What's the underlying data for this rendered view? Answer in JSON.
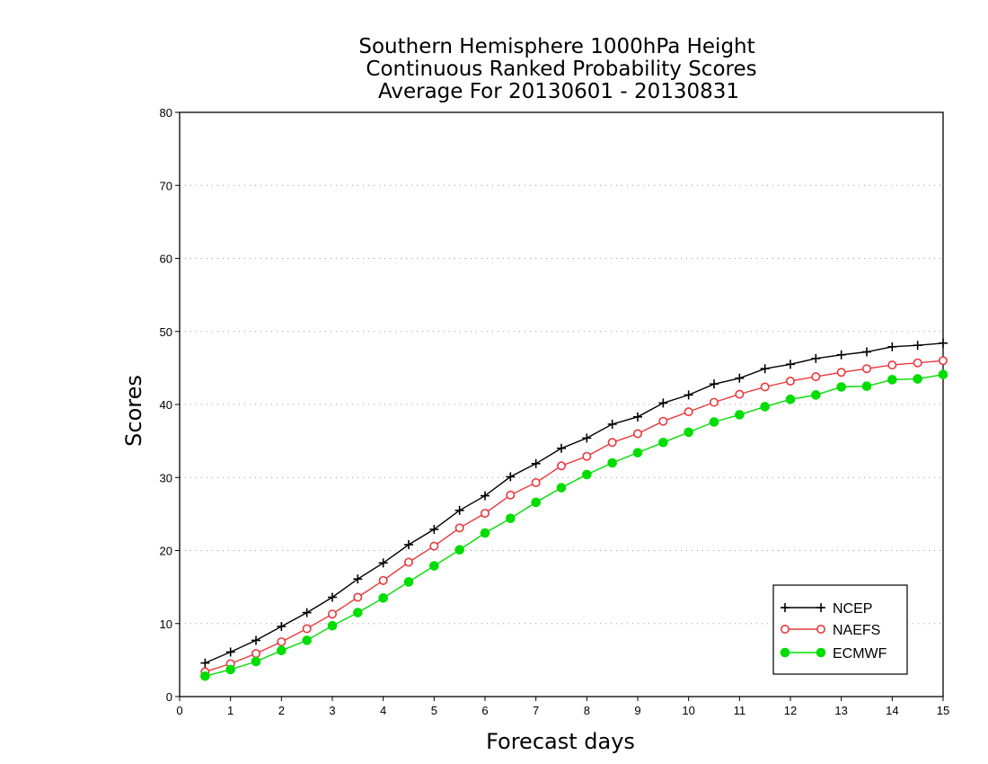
{
  "chart_data": {
    "type": "line",
    "title": [
      "Southern Hemisphere 1000hPa Height",
      "Continuous Ranked Probability Scores",
      "Average For 20130601 - 20130831"
    ],
    "xlabel": "Forecast days",
    "ylabel": "Scores",
    "xlim": [
      0,
      15
    ],
    "ylim": [
      0,
      80
    ],
    "xticks": [
      0,
      1,
      2,
      3,
      4,
      5,
      6,
      7,
      8,
      9,
      10,
      11,
      12,
      13,
      14,
      15
    ],
    "yticks": [
      0,
      10,
      20,
      30,
      40,
      50,
      60,
      70,
      80
    ],
    "grid": "horizontal-dotted",
    "legend_position": "bottom-right",
    "x": [
      0.5,
      1,
      1.5,
      2,
      2.5,
      3,
      3.5,
      4,
      4.5,
      5,
      5.5,
      6,
      6.5,
      7,
      7.5,
      8,
      8.5,
      9,
      9.5,
      10,
      10.5,
      11,
      11.5,
      12,
      12.5,
      13,
      13.5,
      14,
      14.5,
      15
    ],
    "series": [
      {
        "name": "NCEP",
        "color": "#000000",
        "marker": "plus",
        "values": [
          4.6,
          6.1,
          7.7,
          9.6,
          11.5,
          13.6,
          16.1,
          18.3,
          20.8,
          22.9,
          25.5,
          27.5,
          30.1,
          31.9,
          34.0,
          35.4,
          37.3,
          38.3,
          40.2,
          41.3,
          42.8,
          43.6,
          44.9,
          45.5,
          46.3,
          46.8,
          47.2,
          47.9,
          48.1,
          48.4
        ]
      },
      {
        "name": "NAEFS",
        "color": "#e8383c",
        "marker": "open-circle",
        "values": [
          3.4,
          4.5,
          5.9,
          7.5,
          9.3,
          11.3,
          13.6,
          15.9,
          18.4,
          20.6,
          23.1,
          25.1,
          27.6,
          29.3,
          31.6,
          32.9,
          34.8,
          36.0,
          37.7,
          39.0,
          40.3,
          41.4,
          42.4,
          43.2,
          43.8,
          44.4,
          44.9,
          45.4,
          45.7,
          46.0
        ]
      },
      {
        "name": "ECMWF",
        "color": "#00dd00",
        "marker": "filled-circle",
        "values": [
          2.8,
          3.7,
          4.8,
          6.3,
          7.7,
          9.7,
          11.5,
          13.5,
          15.7,
          17.9,
          20.1,
          22.4,
          24.4,
          26.6,
          28.6,
          30.4,
          32.0,
          33.4,
          34.8,
          36.2,
          37.6,
          38.6,
          39.7,
          40.7,
          41.3,
          42.4,
          42.5,
          43.4,
          43.5,
          44.1
        ]
      }
    ]
  }
}
